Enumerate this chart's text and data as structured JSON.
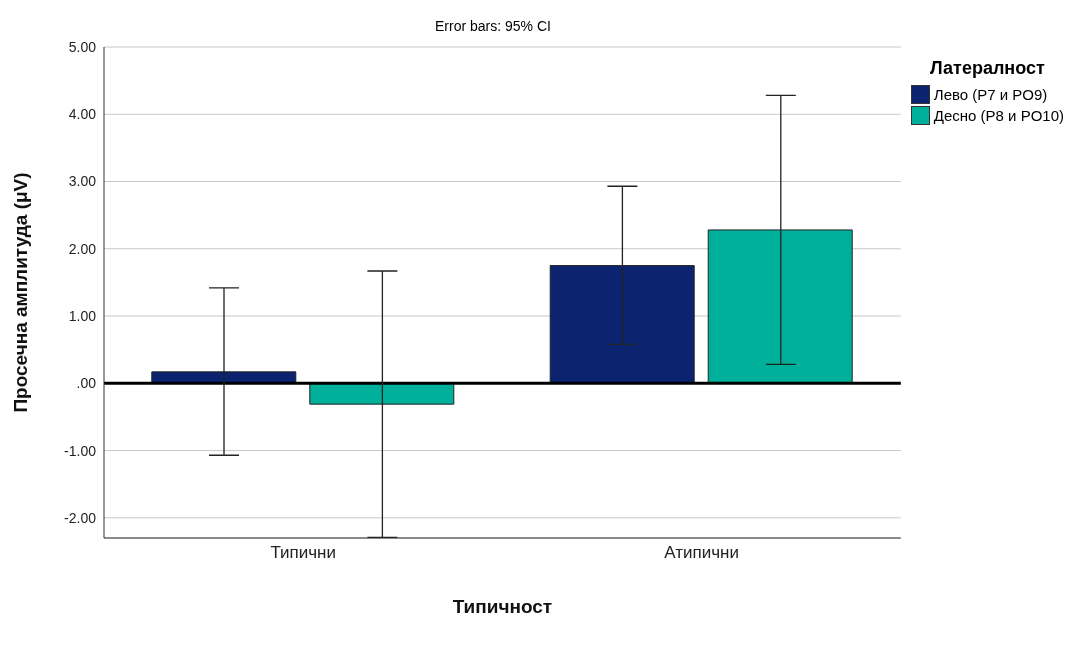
{
  "chart_data": {
    "type": "bar",
    "annotations": [
      "Error bars: 95% CI"
    ],
    "xlabel": "Типичност",
    "ylabel": "Просечна амплитуда (μV)",
    "legend_title": "Латералност",
    "categories": [
      "Типични",
      "Атипични"
    ],
    "series": [
      {
        "name": "Лево (P7 и PO9)",
        "color": "#0c2470",
        "values": [
          0.17,
          1.75
        ],
        "errors": [
          [
            -1.07,
            1.42
          ],
          [
            0.58,
            2.93
          ]
        ]
      },
      {
        "name": "Десно (P8 и PO10)",
        "color": "#00b09b",
        "values": [
          -0.31,
          2.28
        ],
        "errors": [
          [
            -2.29,
            1.67
          ],
          [
            0.28,
            4.28
          ]
        ]
      }
    ],
    "ylim": [
      -2.3,
      5
    ],
    "yticks": [
      {
        "value": -2,
        "label": "-2.00"
      },
      {
        "value": -1,
        "label": "-1.00"
      },
      {
        "value": 0,
        "label": ".00"
      },
      {
        "value": 1,
        "label": "1.00"
      },
      {
        "value": 2,
        "label": "2.00"
      },
      {
        "value": 3,
        "label": "3.00"
      },
      {
        "value": 4,
        "label": "4.00"
      },
      {
        "value": 5,
        "label": "5.00"
      }
    ],
    "ref_lines": [
      {
        "axis": "y",
        "value": 0,
        "color": "#000000"
      }
    ],
    "grid": "y",
    "legend": "top right"
  }
}
